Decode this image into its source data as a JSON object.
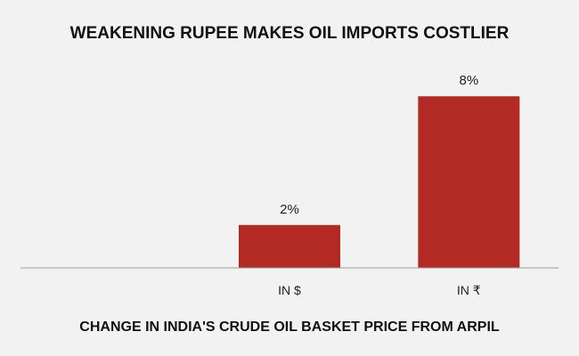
{
  "chart_data": {
    "type": "bar",
    "title": "WEAKENING RUPEE MAKES OIL IMPORTS COSTLIER",
    "subtitle": "CHANGE IN INDIA'S CRUDE OIL BASKET PRICE FROM ARPIL",
    "categories": [
      "",
      "IN $",
      "IN ₹"
    ],
    "data_labels": [
      "",
      "2%",
      "8%"
    ],
    "values": [
      null,
      2,
      8
    ],
    "unit": "%",
    "ylim": [
      0,
      10
    ],
    "grid": false,
    "legend": "none",
    "bar_color": "#b32a24",
    "axis_color": "#999999"
  }
}
